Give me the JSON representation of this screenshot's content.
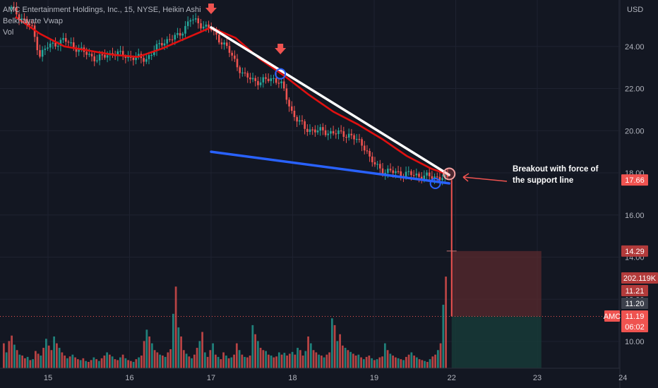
{
  "header": {
    "symbol_line": "AMC Entertainment Holdings, Inc., 15, NYSE, Heikin Ashi",
    "indicator": "Belkhayate Vwap",
    "volume_label": "Vol"
  },
  "annotation": {
    "line1": "Breakout with force of",
    "line2": "the support line"
  },
  "price_axis": {
    "currency": "USD",
    "ticks": [
      "24.00",
      "22.00",
      "20.00",
      "18.00",
      "16.00",
      "14.00",
      "12.00",
      "10.00"
    ]
  },
  "time_axis": {
    "ticks": [
      "15",
      "16",
      "17",
      "18",
      "19",
      "22",
      "23",
      "24"
    ]
  },
  "price_labels": {
    "last_price": "17.66",
    "stop_level": "14.29",
    "volume_value": "202.119K",
    "level_a": "11.21",
    "level_b": "11.20",
    "amc_price": "11.19",
    "countdown": "06:02",
    "amc_tag": "AMC"
  },
  "colors": {
    "background": "#131722",
    "bull": "#26a69a",
    "bear": "#ef5350",
    "vwap": "#e01010",
    "resistance": "#ffffff",
    "support": "#2962ff",
    "loss_zone": "#5a2a2e",
    "profit_zone": "#183a37"
  },
  "chart_data": {
    "type": "candlestick",
    "title": "AMC Entertainment Holdings, Inc., 15, NYSE, Heikin Ashi",
    "y_unit": "USD",
    "ylim": [
      8.3,
      26.0
    ],
    "x_range": [
      "14.6",
      "24.1"
    ],
    "price_series": {
      "name": "Heikin Ashi close (approx.)",
      "x": [
        14.55,
        14.8,
        14.9,
        15.0,
        15.2,
        15.4,
        15.6,
        15.8,
        16.0,
        16.2,
        16.4,
        16.6,
        16.75,
        16.9,
        17.0,
        17.2,
        17.4,
        17.6,
        17.75,
        17.85,
        18.0,
        18.15,
        18.3,
        18.5,
        18.7,
        18.9,
        18.95,
        19.1,
        19.3,
        19.5,
        19.7,
        19.85,
        19.9
      ],
      "y": [
        25.8,
        24.9,
        23.6,
        24.0,
        24.3,
        23.8,
        23.4,
        23.7,
        23.5,
        23.4,
        24.2,
        24.5,
        25.3,
        25.0,
        24.8,
        23.9,
        22.6,
        22.3,
        22.5,
        22.3,
        20.8,
        20.1,
        20.0,
        19.9,
        19.8,
        19.2,
        18.6,
        18.1,
        18.0,
        17.9,
        17.8,
        17.8,
        17.7
      ]
    },
    "vwap_series": {
      "name": "Belkhayate Vwap",
      "x": [
        14.6,
        14.9,
        15.2,
        15.5,
        15.8,
        16.1,
        16.4,
        16.7,
        17.0,
        17.3,
        17.6,
        17.9,
        18.2,
        18.5,
        18.8,
        19.1,
        19.4,
        19.7,
        19.92
      ],
      "y": [
        25.4,
        24.6,
        24.0,
        23.8,
        23.6,
        23.5,
        23.9,
        24.4,
        24.9,
        24.4,
        23.4,
        22.6,
        21.7,
        20.9,
        20.3,
        19.6,
        18.8,
        18.2,
        17.9
      ]
    },
    "trendlines": [
      {
        "role": "resistance",
        "x": [
          17.0,
          19.92
        ],
        "y": [
          24.9,
          17.9
        ]
      },
      {
        "role": "support",
        "x": [
          17.0,
          19.92
        ],
        "y": [
          19.0,
          17.5
        ]
      }
    ],
    "breakout": {
      "x": 19.95,
      "from": 17.66,
      "to": 11.19
    },
    "volume": {
      "name": "Vol",
      "max_volume_k": 202.119,
      "values_k": [
        55,
        35,
        60,
        72,
        52,
        40,
        30,
        28,
        22,
        25,
        18,
        20,
        38,
        32,
        28,
        45,
        65,
        50,
        40,
        70,
        55,
        45,
        35,
        28,
        22,
        26,
        30,
        24,
        20,
        18,
        22,
        16,
        14,
        18,
        24,
        20,
        16,
        22,
        28,
        35,
        30,
        26,
        20,
        18,
        24,
        30,
        22,
        18,
        16,
        14,
        20,
        24,
        28,
        60,
        85,
        70,
        55,
        40,
        35,
        30,
        28,
        25,
        35,
        42,
        120,
        180,
        90,
        70,
        40,
        32,
        26,
        22,
        30,
        45,
        60,
        80,
        35,
        25,
        40,
        55,
        30,
        25,
        20,
        35,
        28,
        22,
        24,
        30,
        55,
        40,
        30,
        25,
        24,
        28,
        95,
        75,
        60,
        45,
        40,
        38,
        30,
        28,
        24,
        26,
        35,
        30,
        34,
        28,
        32,
        36,
        30,
        45,
        40,
        28,
        38,
        70,
        55,
        40,
        35,
        30,
        28,
        24,
        30,
        35,
        110,
        95,
        60,
        75,
        50,
        45,
        40,
        36,
        32,
        28,
        30,
        24,
        20,
        25,
        28,
        22,
        18,
        20,
        24,
        26,
        55,
        40,
        32,
        28,
        24,
        22,
        20,
        18,
        25,
        30,
        35,
        28,
        24,
        20,
        18,
        16,
        14,
        20,
        26,
        30,
        40,
        55,
        140,
        202
      ]
    }
  }
}
